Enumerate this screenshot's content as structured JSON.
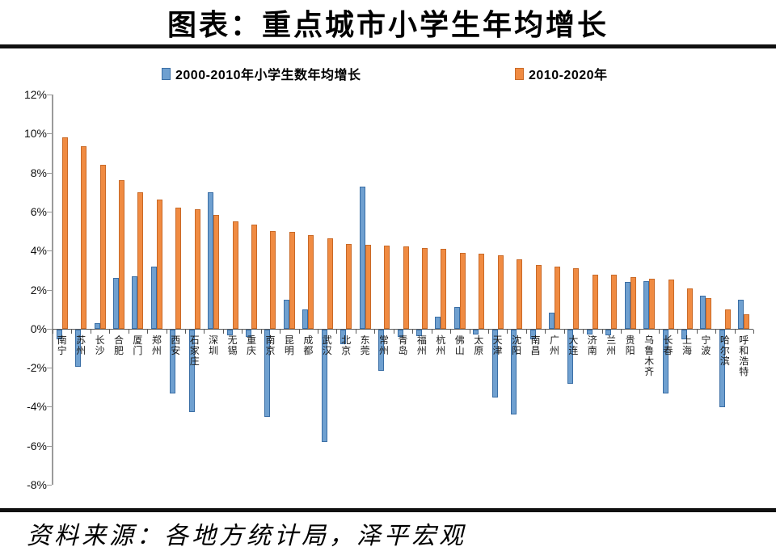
{
  "title": "图表：重点城市小学生年均增长",
  "source": "资料来源：各地方统计局，泽平宏观",
  "colors": {
    "blue_fill": "#6FA0D0",
    "blue_border": "#3A6EA5",
    "orange_fill": "#F08B42",
    "orange_border": "#C96A28",
    "axis": "#9a9a9a",
    "zero_axis": "#595959",
    "text": "#111111",
    "divider": "#101010"
  },
  "chart_data": {
    "type": "bar",
    "title": "图表：重点城市小学生年均增长",
    "categories": [
      "南宁",
      "苏州",
      "长沙",
      "合肥",
      "厦门",
      "郑州",
      "西安",
      "石家庄",
      "深圳",
      "无锡",
      "重庆",
      "南京",
      "昆明",
      "成都",
      "武汉",
      "北京",
      "东莞",
      "常州",
      "青岛",
      "福州",
      "杭州",
      "佛山",
      "太原",
      "天津",
      "沈阳",
      "南昌",
      "广州",
      "大连",
      "济南",
      "兰州",
      "贵阳",
      "乌鲁木齐",
      "长春",
      "上海",
      "宁波",
      "哈尔滨",
      "呼和浩特"
    ],
    "series": [
      {
        "name": "2000-2010年小学生数年均增长",
        "color_key": "blue",
        "values": [
          -0.5,
          -1.9,
          0.3,
          2.6,
          2.7,
          3.2,
          -3.3,
          -4.25,
          7.0,
          -0.3,
          -0.4,
          -4.5,
          1.5,
          1.0,
          -5.75,
          -0.75,
          7.3,
          -2.1,
          -0.4,
          -0.35,
          0.6,
          1.1,
          -0.25,
          -3.5,
          -4.35,
          -0.5,
          0.8,
          -2.8,
          -0.25,
          -0.3,
          2.4,
          2.45,
          -3.3,
          -0.5,
          1.7,
          -4.0,
          1.5
        ]
      },
      {
        "name": "2010-2020年",
        "color_key": "orange",
        "values": [
          9.8,
          9.35,
          8.4,
          7.6,
          7.0,
          6.6,
          6.2,
          6.1,
          5.85,
          5.5,
          5.35,
          5.0,
          4.95,
          4.8,
          4.65,
          4.35,
          4.3,
          4.25,
          4.2,
          4.15,
          4.1,
          3.9,
          3.85,
          3.75,
          3.55,
          3.25,
          3.2,
          3.1,
          2.75,
          2.75,
          2.65,
          2.55,
          2.5,
          2.05,
          1.55,
          1.0,
          0.75
        ]
      }
    ],
    "ylim": [
      -8,
      12
    ],
    "ytick_step": 2,
    "ytick_labels": [
      "12%",
      "10%",
      "8%",
      "6%",
      "4%",
      "2%",
      "0%",
      "-2%",
      "-4%",
      "-6%",
      "-8%"
    ],
    "unit": "%",
    "grid": false,
    "legend_position": "top"
  }
}
